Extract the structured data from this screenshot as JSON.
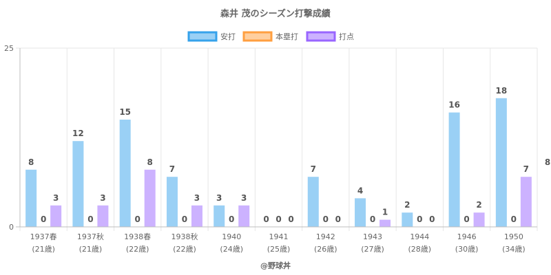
{
  "chart_data": {
    "type": "bar",
    "title": "森井 茂のシーズン打撃成績",
    "categories": [
      [
        "1937春",
        "(21歳)"
      ],
      [
        "1937秋",
        "(21歳)"
      ],
      [
        "1938春",
        "(22歳)"
      ],
      [
        "1938秋",
        "(22歳)"
      ],
      [
        "1940",
        "(24歳)"
      ],
      [
        "1941",
        "(25歳)"
      ],
      [
        "1942",
        "(26歳)"
      ],
      [
        "1943",
        "(27歳)"
      ],
      [
        "1944",
        "(28歳)"
      ],
      [
        "1946",
        "(30歳)"
      ],
      [
        "1950",
        "(34歳)"
      ]
    ],
    "series": [
      {
        "name": "安打",
        "values": [
          8,
          12,
          15,
          7,
          3,
          0,
          7,
          4,
          2,
          16,
          18
        ],
        "color": "#9ad0f5",
        "border": "#36a2eb"
      },
      {
        "name": "本塁打",
        "values": [
          0,
          0,
          0,
          0,
          0,
          0,
          0,
          0,
          0,
          0,
          0
        ],
        "color": "#ffcf9f",
        "border": "#ff9f40"
      },
      {
        "name": "打点",
        "values": [
          3,
          3,
          8,
          3,
          3,
          0,
          0,
          1,
          0,
          2,
          7
        ],
        "color": "#ccb2ff",
        "border": "#9966ff"
      }
    ],
    "ylim": [
      0,
      25
    ],
    "yticks": [
      0,
      25
    ],
    "legend_position": "top",
    "grid": true,
    "overflow_label": "8",
    "footer": "@野球丼"
  }
}
